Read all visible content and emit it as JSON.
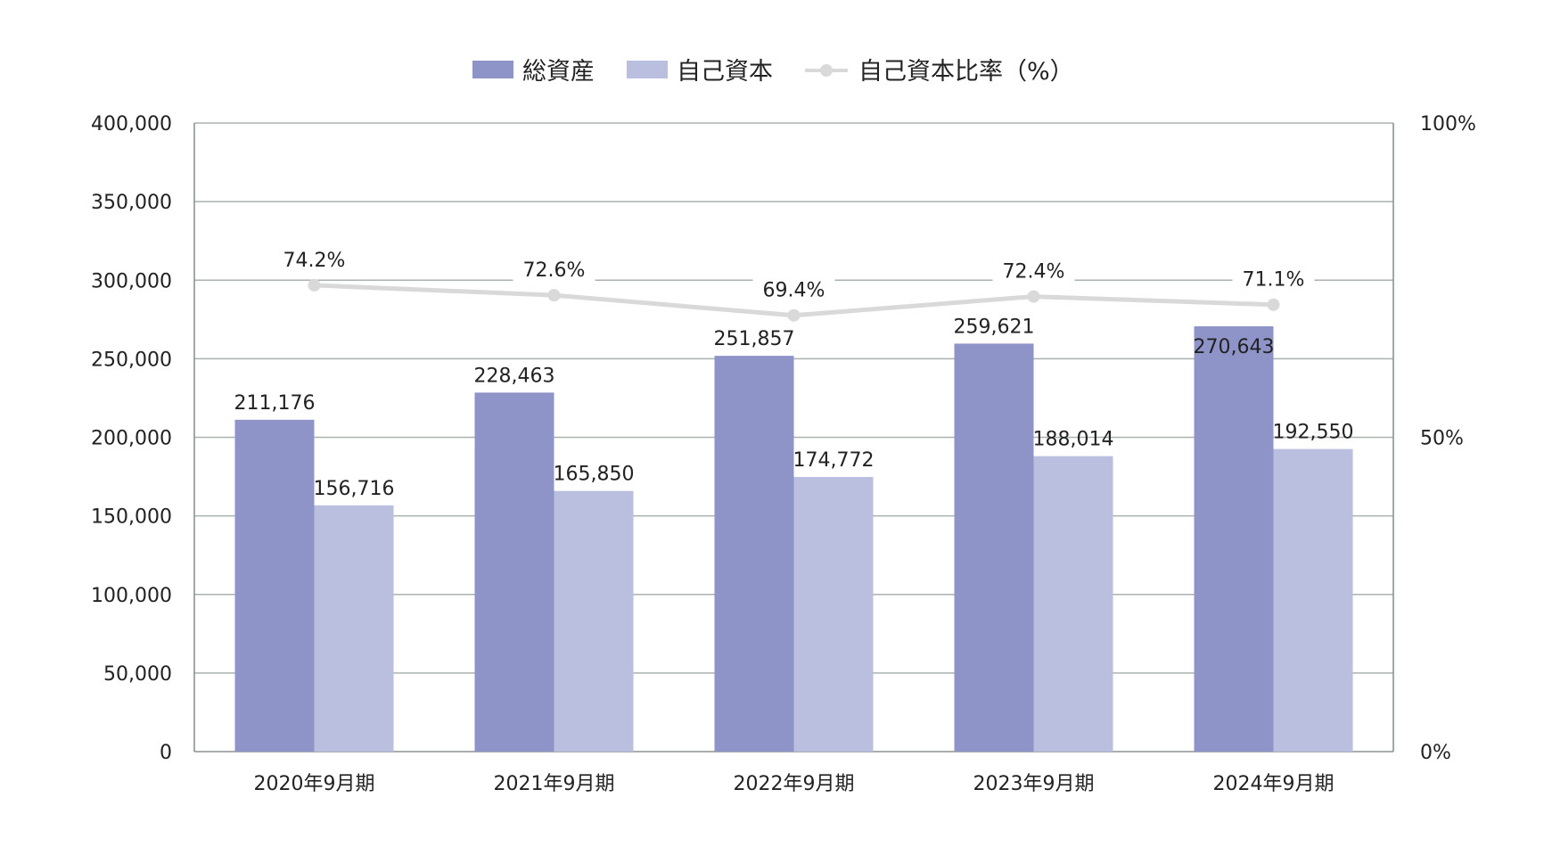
{
  "chart_data": {
    "type": "bar",
    "categories": [
      "2020年9月期",
      "2021年9月期",
      "2022年9月期",
      "2023年9月期",
      "2024年9月期"
    ],
    "series": [
      {
        "name": "総資産",
        "kind": "bar",
        "axis": "left",
        "color": "#8e94c8",
        "values": [
          211176,
          228463,
          251857,
          259621,
          270643
        ],
        "labels": [
          "211,176",
          "228,463",
          "251,857",
          "259,621",
          "270,643"
        ]
      },
      {
        "name": "自己資本",
        "kind": "bar",
        "axis": "left",
        "color": "#babedf",
        "values": [
          156716,
          165850,
          174772,
          188014,
          192550
        ],
        "labels": [
          "156,716",
          "165,850",
          "174,772",
          "188,014",
          "192,550"
        ]
      },
      {
        "name": "自己資本比率（%）",
        "kind": "line",
        "axis": "right",
        "color": "#d9d9d9",
        "values": [
          74.2,
          72.6,
          69.4,
          72.4,
          71.1
        ],
        "labels": [
          "74.2%",
          "72.6%",
          "69.4%",
          "72.4%",
          "71.1%"
        ]
      }
    ],
    "y_left": {
      "min": 0,
      "max": 400000,
      "ticks": [
        0,
        50000,
        100000,
        150000,
        200000,
        250000,
        300000,
        350000,
        400000
      ],
      "tick_labels": [
        "0",
        "50,000",
        "100,000",
        "150,000",
        "200,000",
        "250,000",
        "300,000",
        "350,000",
        "400,000"
      ]
    },
    "y_right": {
      "min": 0,
      "max": 100,
      "ticks": [
        0,
        50,
        100
      ],
      "tick_labels": [
        "0%",
        "50%",
        "100%"
      ]
    },
    "grid": true,
    "legend_position": "top-center",
    "grid_color": "#a9b2ad",
    "axis_color": "#8a948f"
  }
}
